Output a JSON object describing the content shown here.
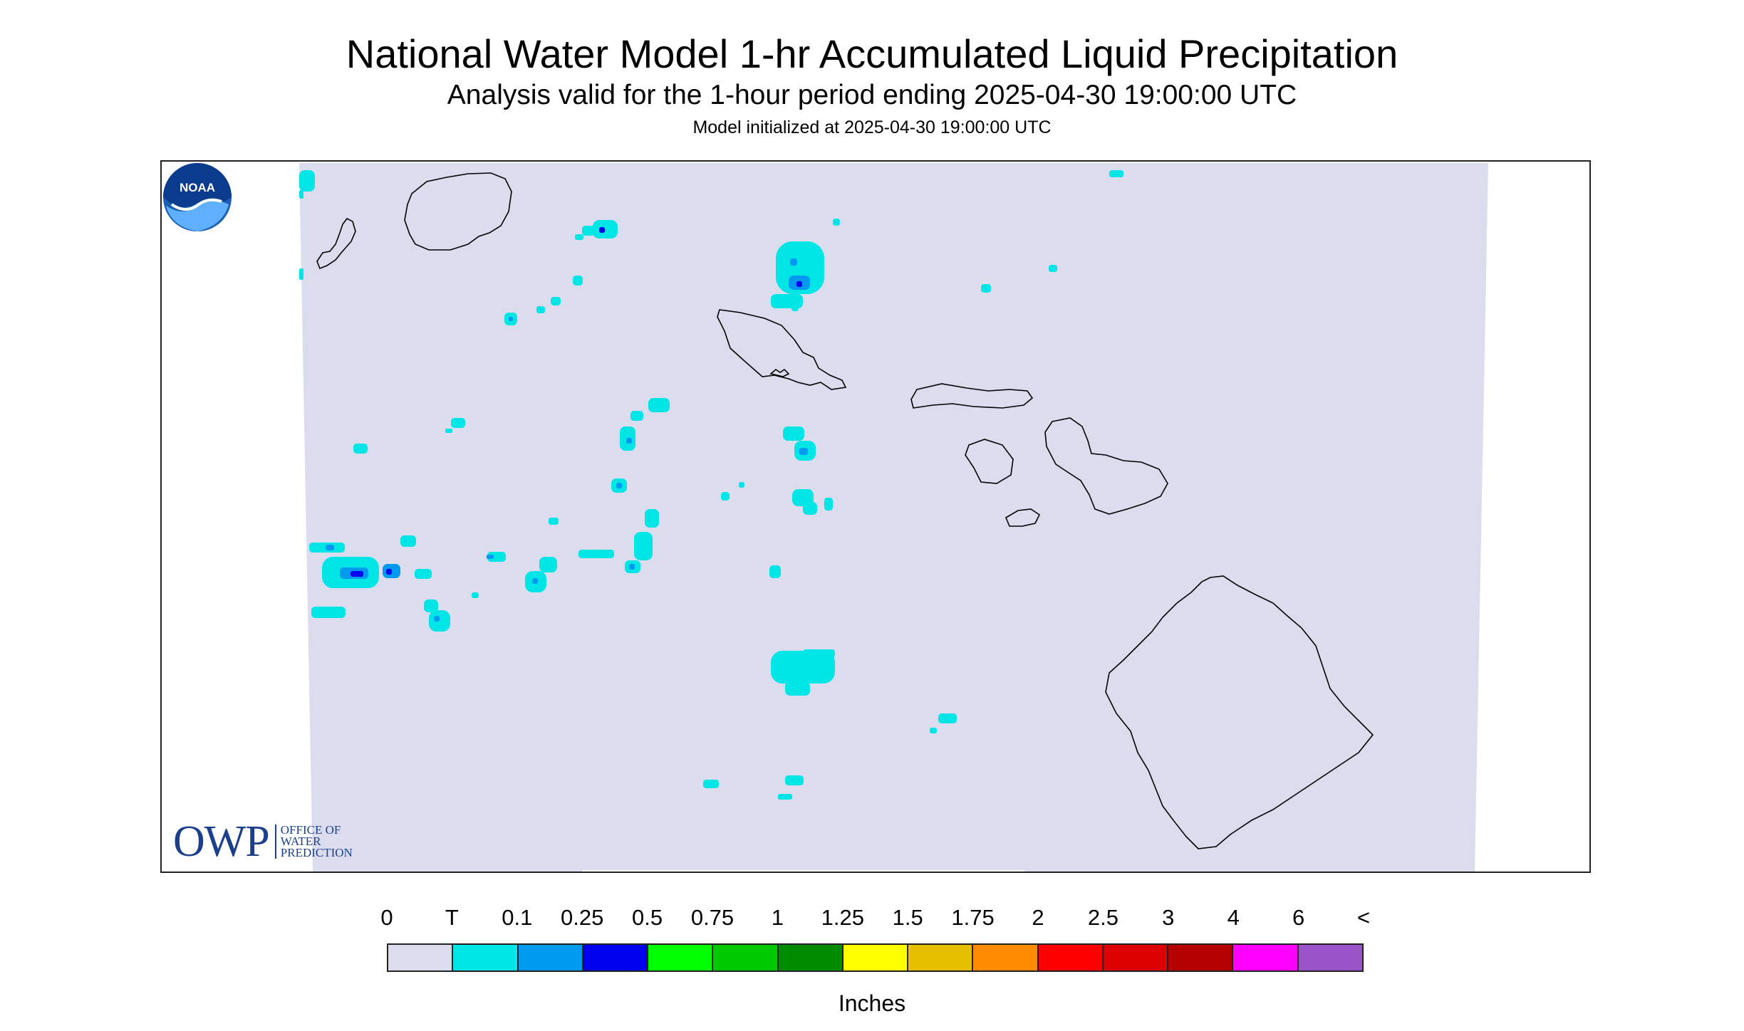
{
  "header": {
    "title": "National Water Model 1-hr Accumulated Liquid Precipitation",
    "subtitle": "Analysis valid for the 1-hour period ending 2025-04-30 19:00:00 UTC",
    "initialized": "Model initialized at 2025-04-30 19:00:00 UTC"
  },
  "map": {
    "background_color": "#dcdcef",
    "outside_color": "#ffffff",
    "coastline_color": "#000000",
    "precip_colors": {
      "trace": "#00e6e6",
      "light": "#0099f0",
      "moderate": "#0000ee"
    }
  },
  "logos": {
    "owp": {
      "mark": "OWP",
      "line1": "OFFICE OF",
      "line2": "WATER",
      "line3": "PREDICTION",
      "color": "#1c3f8c"
    },
    "noaa": {
      "text": "NOAA",
      "icon": "noaa-logo"
    }
  },
  "legend": {
    "labels": [
      "0",
      "T",
      "0.1",
      "0.25",
      "0.5",
      "0.75",
      "1",
      "1.25",
      "1.5",
      "1.75",
      "2",
      "2.5",
      "3",
      "4",
      "6",
      "<"
    ],
    "colors": [
      "#dcdcef",
      "#00e6e6",
      "#0099f0",
      "#0000ee",
      "#00ff00",
      "#00c800",
      "#008c00",
      "#ffff00",
      "#e6c000",
      "#ff8c00",
      "#ff0000",
      "#dc0000",
      "#b40000",
      "#ff00ff",
      "#9955c8"
    ],
    "units": "Inches"
  }
}
